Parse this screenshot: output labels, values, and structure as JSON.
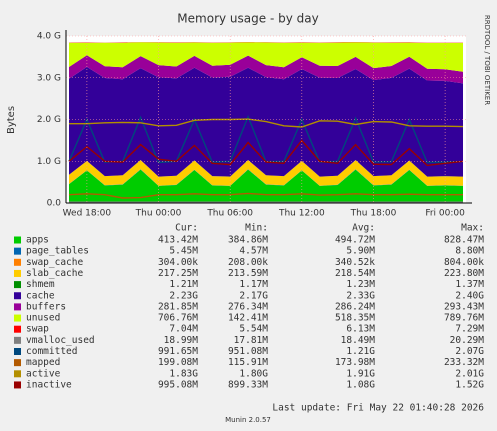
{
  "chart_data": {
    "type": "area",
    "title": "Memory usage - by day",
    "y_label": "Bytes",
    "side_text": "RRDTOOL / TOBI OETIKER",
    "footer": "Last update: Fri May 22 01:40:28 2026",
    "version": "Munin 2.0.57",
    "grid": true,
    "xlim": [
      16.25,
      49.75
    ],
    "xticks": [
      {
        "value": 18,
        "label": "Wed 18:00"
      },
      {
        "value": 24,
        "label": "Thu 00:00"
      },
      {
        "value": 30,
        "label": "Thu 06:00"
      },
      {
        "value": 36,
        "label": "Thu 12:00"
      },
      {
        "value": 42,
        "label": "Thu 18:00"
      },
      {
        "value": 48,
        "label": "Fri 00:00"
      }
    ],
    "ylim": [
      0,
      4
    ],
    "yticks": [
      {
        "value": 0,
        "label": "0.0"
      },
      {
        "value": 1,
        "label": "1.0 G"
      },
      {
        "value": 2,
        "label": "2.0 G"
      },
      {
        "value": 3,
        "label": "3.0 G"
      },
      {
        "value": 4,
        "label": "4.0 G"
      }
    ],
    "x": [
      16.5,
      18,
      19.5,
      21,
      22.5,
      24,
      25.5,
      27,
      28.5,
      30,
      31.5,
      33,
      34.5,
      36,
      37.5,
      39,
      40.5,
      42,
      43.5,
      45,
      46.5,
      48,
      49.5
    ],
    "stat_headers": [
      "Cur:",
      "Min:",
      "Avg:",
      "Max:"
    ],
    "series": [
      {
        "name": "apps",
        "color": "#00cc00",
        "draw": "area",
        "stats": [
          "413.42M",
          "384.86M",
          "494.72M",
          "828.47M"
        ],
        "values": [
          0.45,
          0.78,
          0.42,
          0.44,
          0.8,
          0.41,
          0.43,
          0.79,
          0.42,
          0.41,
          0.8,
          0.44,
          0.42,
          0.78,
          0.41,
          0.43,
          0.8,
          0.42,
          0.44,
          0.79,
          0.41,
          0.42,
          0.41
        ]
      },
      {
        "name": "page_tables",
        "color": "#0066b3",
        "draw": "area",
        "stats": [
          "5.45M",
          "4.57M",
          "5.90M",
          "8.80M"
        ],
        "values": [
          0.005,
          0.006,
          0.005,
          0.005,
          0.006,
          0.005,
          0.005,
          0.006,
          0.005,
          0.005,
          0.006,
          0.005,
          0.005,
          0.006,
          0.005,
          0.005,
          0.006,
          0.005,
          0.005,
          0.006,
          0.005,
          0.005,
          0.005
        ]
      },
      {
        "name": "swap_cache",
        "color": "#ff8000",
        "draw": "area",
        "stats": [
          "304.00k",
          "208.00k",
          "340.52k",
          "804.00k"
        ],
        "values": [
          0.0003,
          0.0003,
          0.0003,
          0.0003,
          0.0003,
          0.0003,
          0.0003,
          0.0003,
          0.0003,
          0.0003,
          0.0003,
          0.0003,
          0.0003,
          0.0003,
          0.0003,
          0.0003,
          0.0003,
          0.0003,
          0.0003,
          0.0003,
          0.0003,
          0.0003,
          0.0003
        ]
      },
      {
        "name": "slab_cache",
        "color": "#ffcc00",
        "draw": "area",
        "stats": [
          "217.25M",
          "213.59M",
          "218.54M",
          "223.80M"
        ],
        "values": [
          0.22,
          0.222,
          0.218,
          0.219,
          0.223,
          0.217,
          0.218,
          0.222,
          0.219,
          0.218,
          0.223,
          0.219,
          0.218,
          0.222,
          0.217,
          0.218,
          0.222,
          0.218,
          0.219,
          0.221,
          0.217,
          0.217,
          0.217
        ]
      },
      {
        "name": "shmem",
        "color": "#008f00",
        "draw": "area",
        "stats": [
          "1.21M",
          "1.17M",
          "1.23M",
          "1.37M"
        ],
        "values": [
          0.0012,
          0.0012,
          0.0012,
          0.0012,
          0.0012,
          0.0012,
          0.0012,
          0.0012,
          0.0012,
          0.0012,
          0.0012,
          0.0012,
          0.0012,
          0.0012,
          0.0012,
          0.0012,
          0.0012,
          0.0012,
          0.0012,
          0.0012,
          0.0012,
          0.0012,
          0.0012
        ]
      },
      {
        "name": "cache",
        "color": "#330099",
        "draw": "area",
        "stats": [
          "2.23G",
          "2.17G",
          "2.33G",
          "2.40G"
        ],
        "values": [
          2.3,
          2.25,
          2.35,
          2.3,
          2.2,
          2.38,
          2.33,
          2.22,
          2.36,
          2.39,
          2.21,
          2.35,
          2.32,
          2.2,
          2.37,
          2.34,
          2.18,
          2.3,
          2.33,
          2.2,
          2.3,
          2.28,
          2.23
        ]
      },
      {
        "name": "buffers",
        "color": "#990099",
        "draw": "area",
        "stats": [
          "281.85M",
          "276.34M",
          "286.24M",
          "293.43M"
        ],
        "values": [
          0.28,
          0.28,
          0.282,
          0.285,
          0.288,
          0.29,
          0.286,
          0.284,
          0.283,
          0.287,
          0.29,
          0.288,
          0.285,
          0.283,
          0.286,
          0.288,
          0.29,
          0.287,
          0.285,
          0.283,
          0.28,
          0.278,
          0.282
        ]
      },
      {
        "name": "unused",
        "color": "#ccff00",
        "draw": "area",
        "stats": [
          "706.76M",
          "142.41M",
          "518.35M",
          "789.76M"
        ],
        "values": [
          0.58,
          0.3,
          0.56,
          0.59,
          0.33,
          0.54,
          0.57,
          0.32,
          0.55,
          0.53,
          0.32,
          0.54,
          0.59,
          0.35,
          0.55,
          0.56,
          0.35,
          0.61,
          0.56,
          0.34,
          0.62,
          0.63,
          0.69
        ]
      },
      {
        "name": "swap",
        "color": "#ff0000",
        "draw": "area",
        "stats": [
          "7.04M",
          "5.54M",
          "6.13M",
          "7.29M"
        ],
        "values": [
          0.007,
          0.007,
          0.006,
          0.006,
          0.006,
          0.006,
          0.006,
          0.006,
          0.006,
          0.006,
          0.006,
          0.006,
          0.006,
          0.006,
          0.006,
          0.006,
          0.006,
          0.006,
          0.006,
          0.007,
          0.007,
          0.007,
          0.007
        ]
      },
      {
        "name": "vmalloc_used",
        "color": "#808080",
        "draw": "line",
        "stats": [
          "18.99M",
          "17.81M",
          "18.49M",
          "20.29M"
        ],
        "values": [
          0.018,
          0.018,
          0.018,
          0.018,
          0.019,
          0.018,
          0.018,
          0.018,
          0.018,
          0.018,
          0.019,
          0.018,
          0.018,
          0.018,
          0.018,
          0.018,
          0.019,
          0.018,
          0.018,
          0.018,
          0.019,
          0.019,
          0.019
        ]
      },
      {
        "name": "committed",
        "color": "#00487d",
        "draw": "line",
        "stats": [
          "991.65M",
          "951.08M",
          "1.21G",
          "2.07G"
        ],
        "values": [
          1.0,
          2.0,
          0.98,
          1.0,
          2.05,
          0.97,
          1.0,
          2.0,
          0.98,
          1.0,
          2.07,
          0.99,
          1.0,
          2.0,
          0.98,
          1.0,
          2.03,
          0.98,
          0.99,
          2.0,
          0.97,
          0.98,
          0.99
        ]
      },
      {
        "name": "mapped",
        "color": "#b35a00",
        "draw": "line",
        "stats": [
          "199.08M",
          "115.91M",
          "173.98M",
          "233.32M"
        ],
        "values": [
          0.2,
          0.22,
          0.2,
          0.12,
          0.13,
          0.2,
          0.2,
          0.22,
          0.2,
          0.2,
          0.23,
          0.2,
          0.2,
          0.22,
          0.19,
          0.2,
          0.22,
          0.2,
          0.2,
          0.21,
          0.2,
          0.2,
          0.2
        ]
      },
      {
        "name": "active",
        "color": "#b38f00",
        "draw": "line",
        "stats": [
          "1.83G",
          "1.80G",
          "1.91G",
          "2.01G"
        ],
        "values": [
          1.9,
          1.9,
          1.92,
          1.93,
          1.92,
          1.85,
          1.86,
          1.98,
          2.0,
          2.0,
          2.01,
          1.95,
          1.85,
          1.82,
          1.97,
          1.96,
          1.88,
          1.95,
          1.94,
          1.85,
          1.84,
          1.84,
          1.83
        ]
      },
      {
        "name": "inactive",
        "color": "#990000",
        "draw": "line",
        "stats": [
          "995.08M",
          "899.33M",
          "1.08G",
          "1.52G"
        ],
        "values": [
          1.0,
          1.35,
          1.0,
          0.98,
          1.4,
          1.05,
          1.0,
          1.38,
          0.95,
          0.92,
          1.45,
          0.98,
          0.95,
          1.5,
          1.0,
          0.95,
          1.4,
          0.93,
          0.92,
          1.3,
          0.9,
          0.95,
          1.0
        ]
      }
    ]
  }
}
